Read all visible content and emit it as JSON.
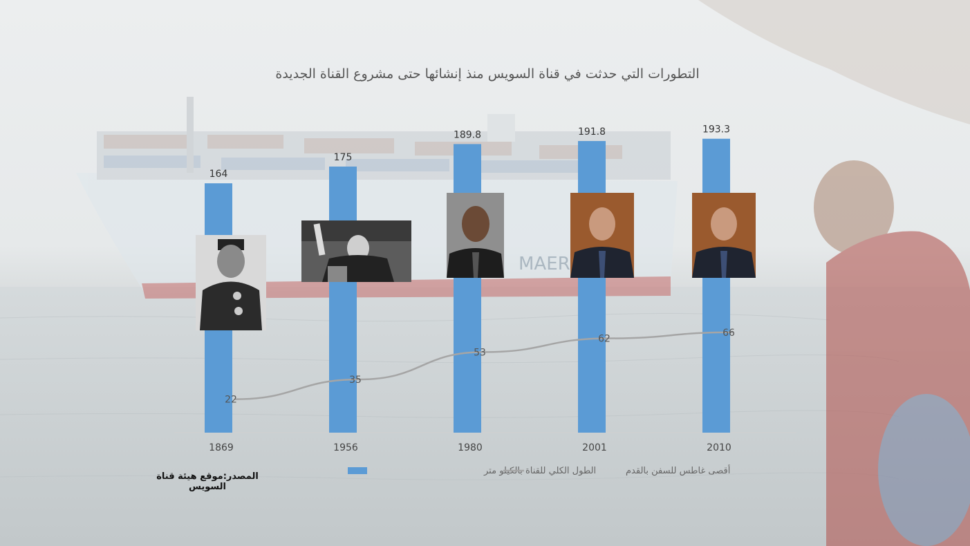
{
  "title": "التطورات التي حدثت في قناة السويس منذ إنشائها حتى مشروع القناة الجديدة",
  "source": "المصدر:موقع هيئة قناة السويس",
  "colors": {
    "bar": "#5b9bd5",
    "line": "#a5a5a5"
  },
  "background": {
    "ship_text": "MAERSK"
  },
  "chart_data": {
    "type": "bar",
    "categories": [
      "1869",
      "1956",
      "1980",
      "2001",
      "2010"
    ],
    "series": [
      {
        "name": "الطول الكلي للقناة بالكيلو متر",
        "kind": "bar",
        "values": [
          164,
          175,
          189.8,
          191.8,
          193.3
        ]
      },
      {
        "name": "أقصى غاطس للسفن بالقدم",
        "kind": "line",
        "values": [
          22,
          35,
          53,
          62,
          66
        ]
      }
    ],
    "ylim": [
      0,
      240
    ],
    "grid": false,
    "legend": "bottom"
  },
  "portraits": [
    {
      "name": "portrait-1869"
    },
    {
      "name": "portrait-1956"
    },
    {
      "name": "portrait-1980"
    },
    {
      "name": "portrait-2001"
    },
    {
      "name": "portrait-2010"
    }
  ]
}
